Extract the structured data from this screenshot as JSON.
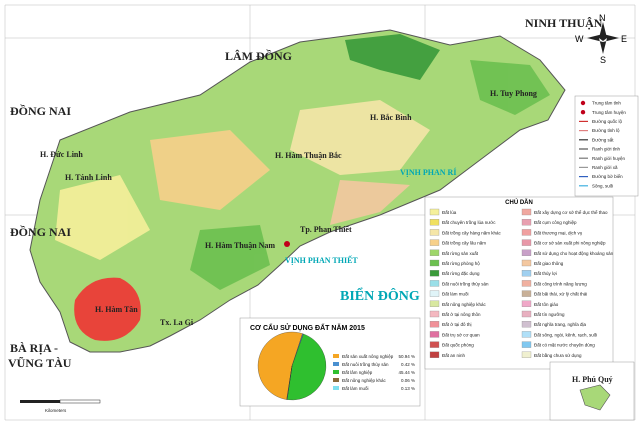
{
  "map": {
    "places": {
      "ninh_thuan": "NINH THUẬN",
      "lam_dong": "LÂM ĐỒNG",
      "dong_nai_top": "ĐỒNG NAI",
      "dong_nai_mid": "ĐỒNG NAI",
      "ba_ria_1": "BÀ RỊA -",
      "ba_ria_2": "VŨNG TÀU",
      "bien_dong": "BIỂN ĐÔNG"
    },
    "districts": {
      "tuy_phong": "H. Tuy Phong",
      "bac_binh": "H. Bắc Bình",
      "ham_thuan_bac": "H. Hàm Thuận Bắc",
      "phan_thiet": "Tp. Phan Thiết",
      "ham_thuan_nam": "H. Hàm Thuận Nam",
      "ham_tan": "H. Hàm Tân",
      "la_gi": "Tx. La Gi",
      "duc_linh": "H. Đức Linh",
      "tanh_linh": "H. Tánh Linh",
      "phu_quy": "H. Phú Quý"
    },
    "bays": {
      "phan_ri": "VỊNH PHAN RÍ",
      "phan_thiet": "VỊNH PHAN THIẾT"
    },
    "compass": {
      "n": "N",
      "e": "E",
      "s": "S",
      "w": "W"
    },
    "scale": "Kilometers"
  },
  "symbols": [
    {
      "label": "Trung tâm tỉnh",
      "color": "#c0001a"
    },
    {
      "label": "Trung tâm huyện",
      "color": "#c0001a"
    },
    {
      "label": "Đường quốc lộ",
      "color": "#d03030"
    },
    {
      "label": "Đường tỉnh lộ",
      "color": "#e08080"
    },
    {
      "label": "Đường sắt",
      "color": "#333333"
    },
    {
      "label": "Ranh giới tỉnh",
      "color": "#555555"
    },
    {
      "label": "Ranh giới huyện",
      "color": "#777777"
    },
    {
      "label": "Ranh giới xã",
      "color": "#999999"
    },
    {
      "label": "Đường bờ biển",
      "color": "#3060c0"
    },
    {
      "label": "Sông, suối",
      "color": "#40b0e0"
    }
  ],
  "legend": {
    "title": "CHÚ DẪN",
    "items": [
      {
        "label": "Đất lúa",
        "color": "#f5f09a"
      },
      {
        "label": "Đất chuyên trồng lúa nước",
        "color": "#f0e060"
      },
      {
        "label": "Đất trồng cây hàng năm khác",
        "color": "#f5e6a8"
      },
      {
        "label": "Đất trồng cây lâu năm",
        "color": "#f7d08a"
      },
      {
        "label": "Đất rừng sản xuất",
        "color": "#9ed66a"
      },
      {
        "label": "Đất rừng phòng hộ",
        "color": "#6cc050"
      },
      {
        "label": "Đất rừng đặc dụng",
        "color": "#3a9a3a"
      },
      {
        "label": "Đất nuôi trồng thủy sản",
        "color": "#9adfe8"
      },
      {
        "label": "Đất làm muối",
        "color": "#e0f4f8"
      },
      {
        "label": "Đất nông nghiệp khác",
        "color": "#d8e8a0"
      },
      {
        "label": "Đất ở tại nông thôn",
        "color": "#f4b8c0"
      },
      {
        "label": "Đất ở tại đô thị",
        "color": "#f09098"
      },
      {
        "label": "Đất trụ sở cơ quan",
        "color": "#e070a0"
      },
      {
        "label": "Đất quốc phòng",
        "color": "#d05050"
      },
      {
        "label": "Đất an ninh",
        "color": "#c04040"
      },
      {
        "label": "Đất xây dựng cơ sở thể dục thể thao",
        "color": "#f0a8a0"
      },
      {
        "label": "Đất cụm công nghiệp",
        "color": "#e8a0b0"
      },
      {
        "label": "Đất thương mại, dịch vụ",
        "color": "#f0a0a0"
      },
      {
        "label": "Đất cơ sở sản xuất phi nông nghiệp",
        "color": "#e898a8"
      },
      {
        "label": "Đất sử dụng cho hoạt động khoáng sản",
        "color": "#c8a0c8"
      },
      {
        "label": "Đất giao thông",
        "color": "#f4c8a0"
      },
      {
        "label": "Đất thủy lợi",
        "color": "#a0d0f0"
      },
      {
        "label": "Đất công trình năng lượng",
        "color": "#f0b0a0"
      },
      {
        "label": "Đất bãi thải, xử lý chất thải",
        "color": "#c8b098"
      },
      {
        "label": "Đất tôn giáo",
        "color": "#f0a8c8"
      },
      {
        "label": "Đất tín ngưỡng",
        "color": "#e8b0c0"
      },
      {
        "label": "Đất nghĩa trang, nghĩa địa",
        "color": "#d0c0d0"
      },
      {
        "label": "Đất sông, ngòi, kênh, rạch, suối",
        "color": "#b0e0f8"
      },
      {
        "label": "Đất có mặt nước chuyên dùng",
        "color": "#80c8f0"
      },
      {
        "label": "Đất bằng chưa sử dụng",
        "color": "#f0f0d0"
      }
    ]
  },
  "pie": {
    "title": "CƠ CẤU SỬ DỤNG ĐẤT NĂM 2015",
    "items": [
      {
        "label": "Đất sản xuất nông nghiệp",
        "value": 50.94,
        "value_label": "50.94 %",
        "color": "#f5a623"
      },
      {
        "label": "Đất nuôi trồng thủy sản",
        "value": 0.42,
        "value_label": "0.42 %",
        "color": "#4a90d0"
      },
      {
        "label": "Đất lâm nghiệp",
        "value": 45.44,
        "value_label": "45.44 %",
        "color": "#2fbf2f"
      },
      {
        "label": "Đất nông nghiệp khác",
        "value": 0.06,
        "value_label": "0.06 %",
        "color": "#8a6a3a"
      },
      {
        "label": "Đất làm muối",
        "value": 0.13,
        "value_label": "0.13 %",
        "color": "#80e0f0"
      }
    ]
  }
}
